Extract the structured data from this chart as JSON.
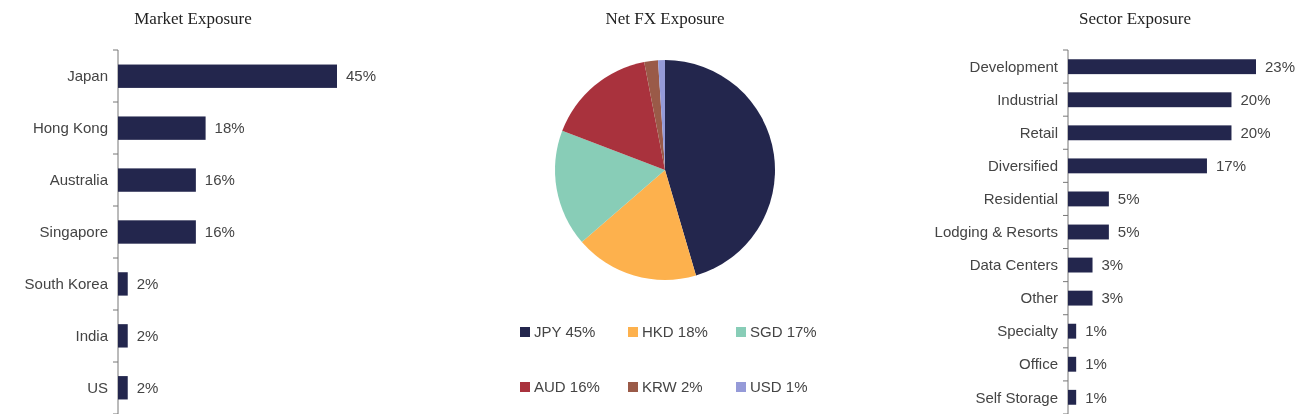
{
  "chart_data": [
    {
      "type": "bar",
      "orientation": "horizontal",
      "title": "Market Exposure",
      "categories": [
        "Japan",
        "Hong Kong",
        "Australia",
        "Singapore",
        "South Korea",
        "India",
        "US"
      ],
      "values": [
        45,
        18,
        16,
        16,
        2,
        2,
        2
      ],
      "color": "#23264d",
      "value_labels": [
        "45%",
        "18%",
        "16%",
        "16%",
        "2%",
        "2%",
        "2%"
      ]
    },
    {
      "type": "pie",
      "title": "Net FX Exposure",
      "categories": [
        "JPY 45%",
        "HKD 18%",
        "SGD 17%",
        "AUD 16%",
        "KRW 2%",
        "USD 1%"
      ],
      "values": [
        45,
        18,
        17,
        16,
        2,
        1
      ],
      "colors": [
        "#23264d",
        "#fdb14d",
        "#88cdb7",
        "#a9323d",
        "#9a5a48",
        "#959ad8"
      ],
      "legend": "bottom"
    },
    {
      "type": "bar",
      "orientation": "horizontal",
      "title": "Sector Exposure",
      "categories": [
        "Development",
        "Industrial",
        "Retail",
        "Diversified",
        "Residential",
        "Lodging & Resorts",
        "Data Centers",
        "Other",
        "Specialty",
        "Office",
        "Self Storage"
      ],
      "values": [
        23,
        20,
        20,
        17,
        5,
        5,
        3,
        3,
        1,
        1,
        1
      ],
      "color": "#23264d",
      "value_labels": [
        "23%",
        "20%",
        "20%",
        "17%",
        "5%",
        "5%",
        "3%",
        "3%",
        "1%",
        "1%",
        "1%"
      ]
    }
  ]
}
